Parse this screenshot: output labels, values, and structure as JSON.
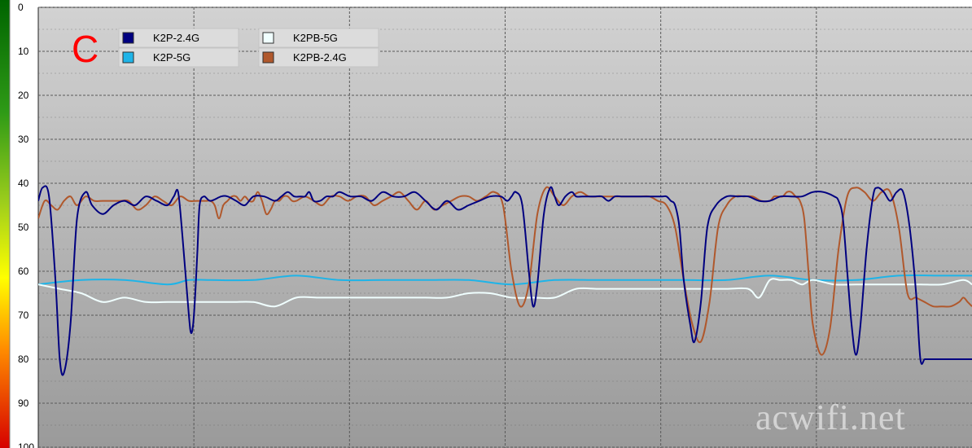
{
  "panel_label": "C",
  "watermark": "acwifi.net",
  "colors": {
    "plot_top": "#d2d2d2",
    "plot_bottom": "#9a9a9a",
    "grid": "#5a5a5a",
    "K2P-2.4G": "#000080",
    "K2P-5G": "#1eb4e8",
    "K2PB-5G": "#f0ffff",
    "K2PB-2.4G": "#b0582c"
  },
  "chart_data": {
    "type": "line",
    "title": "",
    "xlabel": "",
    "ylabel": "",
    "ylim": [
      0,
      100
    ],
    "y_inverted": true,
    "yticks": [
      "0",
      "10",
      "20",
      "30",
      "40",
      "50",
      "60",
      "70",
      "80",
      "90",
      "100"
    ],
    "grid": true,
    "legend_position": "top-left",
    "legend": [
      "K2P-2.4G",
      "K2P-5G",
      "K2PB-5G",
      "K2PB-2.4G"
    ],
    "series": [
      {
        "name": "K2P-2.4G",
        "x": [
          0,
          2,
          5,
          8,
          10,
          12,
          15,
          18,
          22,
          25,
          30,
          35,
          40,
          45,
          50,
          55,
          60,
          63,
          65,
          67,
          70,
          71,
          72,
          73,
          74,
          75,
          77,
          80,
          85,
          88,
          92,
          96,
          100,
          105,
          110,
          113,
          116,
          119,
          122,
          124,
          126,
          128,
          131,
          134,
          137,
          140,
          145,
          150,
          155,
          160,
          165,
          170,
          175,
          180,
          185,
          190,
          195,
          200,
          205,
          210,
          215,
          218,
          220,
          222,
          225,
          228,
          230,
          232,
          235,
          238,
          240,
          242,
          245,
          248,
          250,
          253,
          256,
          259,
          262,
          265,
          268,
          271,
          274,
          277,
          280,
          285,
          290,
          292,
          294,
          296,
          298,
          300,
          303,
          305,
          308,
          311,
          315,
          320,
          325,
          330,
          335,
          340,
          345,
          350,
          355,
          360,
          365,
          370,
          372,
          374,
          376,
          378,
          380,
          382,
          385,
          388,
          390,
          393,
          396,
          399,
          402,
          405,
          408,
          410,
          412,
          414,
          416,
          418,
          420,
          423,
          426,
          428,
          430,
          432,
          433,
          434
        ],
        "values": [
          44,
          41,
          43,
          62,
          80,
          83,
          72,
          48,
          42,
          45,
          47,
          45,
          44,
          45,
          43,
          44,
          45,
          43,
          42,
          52,
          70,
          74,
          72,
          65,
          55,
          45,
          43,
          44,
          43,
          43,
          44,
          45,
          43,
          43,
          44,
          43,
          42,
          43,
          43,
          43,
          42,
          44,
          44,
          43,
          43,
          42,
          43,
          43,
          44,
          42,
          43,
          43,
          42,
          44,
          46,
          44,
          46,
          45,
          44,
          43,
          43,
          44,
          43,
          42,
          45,
          60,
          68,
          63,
          47,
          41,
          43,
          45,
          43,
          42,
          43,
          43,
          43,
          43,
          43,
          44,
          43,
          43,
          43,
          43,
          43,
          43,
          43,
          43,
          44,
          45,
          50,
          62,
          72,
          76,
          67,
          50,
          45,
          43,
          43,
          43,
          44,
          44,
          43,
          43,
          43,
          42,
          42,
          43,
          44,
          48,
          60,
          72,
          79,
          73,
          55,
          43,
          41,
          42,
          44,
          42,
          42,
          50,
          65,
          80,
          80,
          80,
          80,
          80,
          80,
          80,
          80,
          80,
          80,
          80,
          80,
          80
        ]
      },
      {
        "name": "K2P-5G",
        "x": [
          0,
          20,
          40,
          60,
          70,
          80,
          100,
          120,
          140,
          160,
          180,
          200,
          220,
          240,
          260,
          280,
          300,
          320,
          340,
          360,
          380,
          400,
          420,
          434
        ],
        "values": [
          63,
          62,
          62,
          63,
          62,
          62,
          62,
          61,
          62,
          62,
          62,
          62,
          63,
          62,
          62,
          62,
          62,
          62,
          61,
          62,
          62,
          61,
          61,
          61
        ]
      },
      {
        "name": "K2PB-5G",
        "x": [
          0,
          10,
          20,
          30,
          40,
          50,
          60,
          70,
          80,
          90,
          100,
          110,
          120,
          130,
          140,
          150,
          160,
          170,
          180,
          190,
          200,
          210,
          220,
          230,
          240,
          250,
          260,
          270,
          280,
          290,
          300,
          310,
          320,
          330,
          335,
          340,
          345,
          350,
          355,
          360,
          370,
          380,
          390,
          400,
          410,
          420,
          430,
          434
        ],
        "values": [
          63,
          64,
          65,
          67,
          66,
          67,
          67,
          67,
          67,
          67,
          67,
          68,
          66,
          66,
          66,
          66,
          66,
          66,
          66,
          66,
          65,
          65,
          66,
          66,
          66,
          64,
          64,
          64,
          64,
          64,
          64,
          64,
          64,
          64,
          66,
          62,
          62,
          62,
          63,
          62,
          63,
          63,
          63,
          63,
          63,
          63,
          62,
          63
        ]
      },
      {
        "name": "K2PB-2.4G",
        "x": [
          0,
          3,
          6,
          9,
          12,
          15,
          18,
          22,
          26,
          30,
          34,
          38,
          42,
          46,
          50,
          54,
          58,
          62,
          66,
          70,
          74,
          78,
          80,
          82,
          84,
          86,
          88,
          90,
          92,
          94,
          96,
          98,
          100,
          102,
          104,
          106,
          108,
          110,
          112,
          114,
          116,
          118,
          120,
          124,
          128,
          132,
          136,
          140,
          144,
          148,
          152,
          156,
          160,
          164,
          168,
          172,
          176,
          180,
          184,
          188,
          192,
          196,
          200,
          204,
          208,
          212,
          216,
          220,
          224,
          228,
          232,
          236,
          240,
          244,
          248,
          252,
          256,
          260,
          264,
          268,
          272,
          276,
          280,
          284,
          288,
          292,
          296,
          300,
          304,
          308,
          312,
          316,
          320,
          324,
          328,
          332,
          336,
          340,
          342,
          344,
          346,
          348,
          350,
          352,
          354,
          356,
          358,
          360,
          364,
          368,
          372,
          376,
          380,
          384,
          388,
          392,
          396,
          400,
          404,
          408,
          412,
          416,
          420,
          424,
          428,
          430,
          432,
          434
        ],
        "values": [
          48,
          44,
          45,
          46,
          44,
          43,
          45,
          43,
          44,
          44,
          44,
          44,
          44,
          46,
          45,
          43,
          44,
          45,
          43,
          44,
          44,
          44,
          44,
          45,
          48,
          45,
          44,
          43,
          43,
          44,
          43,
          44,
          44,
          42,
          44,
          47,
          46,
          44,
          44,
          43,
          43,
          44,
          44,
          43,
          44,
          45,
          43,
          43,
          44,
          43,
          43,
          45,
          44,
          43,
          42,
          44,
          46,
          44,
          46,
          45,
          44,
          43,
          43,
          44,
          43,
          42,
          45,
          60,
          68,
          63,
          47,
          41,
          43,
          45,
          43,
          42,
          43,
          43,
          43,
          43,
          43,
          43,
          43,
          43,
          44,
          45,
          50,
          62,
          72,
          76,
          67,
          50,
          45,
          43,
          43,
          43,
          44,
          44,
          43,
          43,
          43,
          42,
          42,
          43,
          44,
          48,
          60,
          72,
          79,
          73,
          55,
          43,
          41,
          42,
          44,
          42,
          42,
          50,
          65,
          66,
          67,
          68,
          68,
          68,
          67,
          66,
          67,
          68
        ]
      }
    ]
  }
}
